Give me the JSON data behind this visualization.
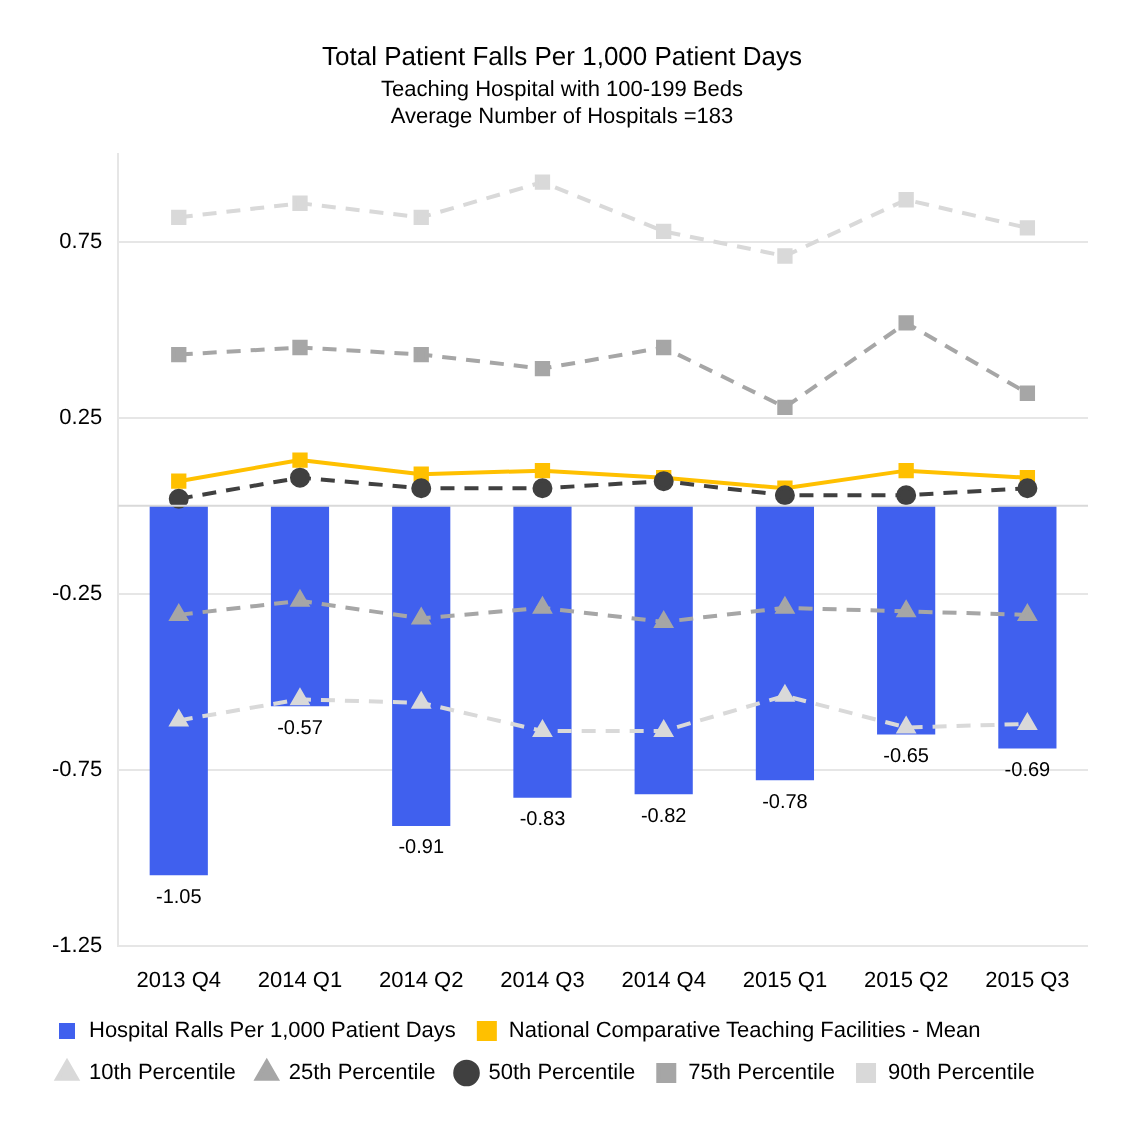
{
  "chart_data": {
    "type": "bar",
    "title": "Total Patient Falls Per 1,000 Patient Days",
    "subtitle": "Teaching Hospital with 100-199 Beds\nAverage Number of Hospitals =183",
    "categories": [
      "2013 Q4",
      "2014 Q1",
      "2014 Q2",
      "2014 Q3",
      "2014 Q4",
      "2015 Q1",
      "2015 Q2",
      "2015 Q3"
    ],
    "series": [
      {
        "name": "Hospital Ralls Per 1,000 Patient Days",
        "color": "#4060ee",
        "values": [
          -1.05,
          -0.57,
          -0.91,
          -0.83,
          -0.82,
          -0.78,
          -0.65,
          -0.69
        ],
        "value_labels": [
          "-1.05",
          "-0.57",
          "-0.91",
          "-0.83",
          "-0.82",
          "-0.78",
          "-0.65",
          "-0.69"
        ]
      },
      {
        "name": "National Comparative Teaching Facilities - Mean",
        "type": "line",
        "color": "#ffc000",
        "marker": "square",
        "line_style": "solid",
        "values": [
          0.07,
          0.13,
          0.09,
          0.1,
          0.08,
          0.05,
          0.1,
          0.08
        ]
      },
      {
        "name": "10th Percentile",
        "type": "line",
        "color": "#d9d9d9",
        "marker": "triangle",
        "line_style": "dashed",
        "values": [
          -0.61,
          -0.55,
          -0.56,
          -0.64,
          -0.64,
          -0.54,
          -0.63,
          -0.62
        ]
      },
      {
        "name": "25th Percentile",
        "type": "line",
        "color": "#a6a6a6",
        "marker": "triangle",
        "line_style": "dashed",
        "values": [
          -0.31,
          -0.27,
          -0.32,
          -0.29,
          -0.33,
          -0.29,
          -0.3,
          -0.31
        ]
      },
      {
        "name": "50th Percentile",
        "type": "line",
        "color": "#404040",
        "marker": "circle",
        "line_style": "dashed",
        "values": [
          0.02,
          0.08,
          0.05,
          0.05,
          0.07,
          0.03,
          0.03,
          0.05
        ]
      },
      {
        "name": "75th Percentile",
        "type": "line",
        "color": "#a6a6a6",
        "marker": "square",
        "line_style": "dashed",
        "values": [
          0.43,
          0.45,
          0.43,
          0.39,
          0.45,
          0.28,
          0.52,
          0.32
        ]
      },
      {
        "name": "90th Percentile",
        "type": "line",
        "color": "#d9d9d9",
        "marker": "square",
        "line_style": "dashed",
        "values": [
          0.82,
          0.86,
          0.82,
          0.92,
          0.78,
          0.71,
          0.87,
          0.79
        ]
      }
    ],
    "ylim": [
      -1.25,
      1.0
    ],
    "yticks": [
      -1.25,
      -0.75,
      -0.25,
      0.25,
      0.75
    ],
    "grid": "y",
    "legend": "bottom"
  }
}
